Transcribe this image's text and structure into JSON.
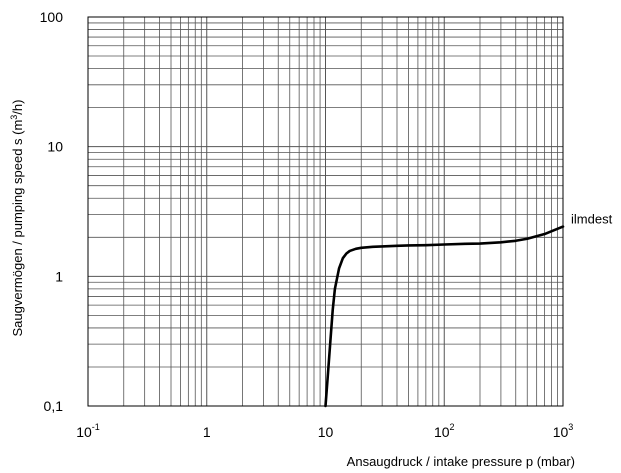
{
  "chart_data": {
    "type": "line",
    "title": "",
    "xlabel": "Ansaugdruck / intake pressure p (mbar)",
    "ylabel_main": "Saugvermögen / pumping speed  s (m",
    "ylabel_sup": "3",
    "ylabel_end": "/h)",
    "x_scale": "log",
    "y_scale": "log",
    "xlim": [
      0.1,
      1000
    ],
    "ylim": [
      0.1,
      100
    ],
    "grid": true,
    "x_ticks": [
      {
        "base": "10",
        "exp": "-1"
      },
      {
        "base": "1",
        "exp": ""
      },
      {
        "base": "10",
        "exp": ""
      },
      {
        "base": "10",
        "exp": "2"
      },
      {
        "base": "10",
        "exp": "3"
      }
    ],
    "y_ticks": [
      "0,1",
      "1",
      "10",
      "100"
    ],
    "series": [
      {
        "name": "ilmdest",
        "x": [
          10,
          10.5,
          11,
          11.5,
          12,
          13,
          14,
          15,
          16,
          18,
          20,
          25,
          30,
          40,
          50,
          70,
          100,
          150,
          200,
          300,
          400,
          500,
          700,
          1000
        ],
        "y": [
          0.1,
          0.18,
          0.32,
          0.55,
          0.8,
          1.15,
          1.38,
          1.5,
          1.57,
          1.63,
          1.66,
          1.69,
          1.7,
          1.72,
          1.73,
          1.74,
          1.76,
          1.78,
          1.79,
          1.83,
          1.88,
          1.95,
          2.12,
          2.42
        ]
      }
    ]
  }
}
